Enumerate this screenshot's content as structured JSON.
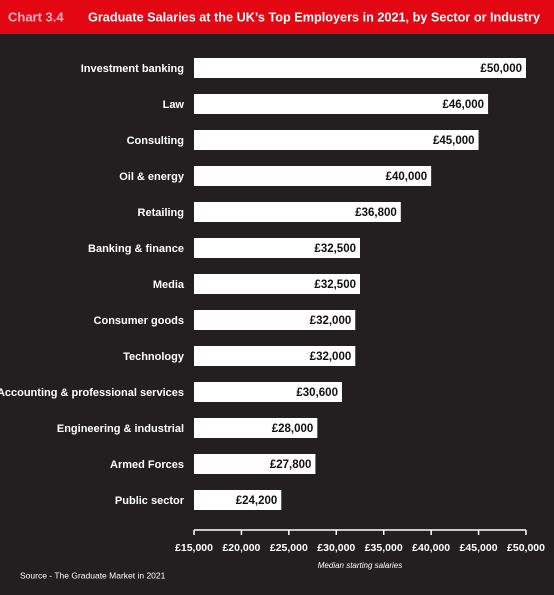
{
  "chart_data": {
    "type": "bar",
    "orientation": "horizontal",
    "chart_label": "Chart 3.4",
    "title": "Graduate Salaries at the UK’s Top Employers in 2021, by Sector or Industry",
    "categories": [
      "Investment banking",
      "Law",
      "Consulting",
      "Oil & energy",
      "Retailing",
      "Banking & finance",
      "Media",
      "Consumer goods",
      "Technology",
      "Accounting & professional services",
      "Engineering & industrial",
      "Armed Forces",
      "Public sector"
    ],
    "values": [
      50000,
      46000,
      45000,
      40000,
      36800,
      32500,
      32500,
      32000,
      32000,
      30600,
      28000,
      27800,
      24200
    ],
    "value_labels": [
      "£50,000",
      "£46,000",
      "£45,000",
      "£40,000",
      "£36,800",
      "£32,500",
      "£32,500",
      "£32,000",
      "£32,000",
      "£30,600",
      "£28,000",
      "£27,800",
      "£24,200"
    ],
    "color": "#ffffff",
    "xlim": [
      15000,
      50000
    ],
    "xticks": [
      {
        "value": 15000,
        "label": "£15,000"
      },
      {
        "value": 20000,
        "label": "£20,000"
      },
      {
        "value": 25000,
        "label": "£25,000"
      },
      {
        "value": 30000,
        "label": "£30,000"
      },
      {
        "value": 35000,
        "label": "£35,000"
      },
      {
        "value": 40000,
        "label": "£40,000"
      },
      {
        "value": 45000,
        "label": "£45,000"
      },
      {
        "value": 50000,
        "label": "£50,000"
      }
    ],
    "x_label": "Median starting salaries",
    "source": "Source - The Graduate Market in 2021"
  }
}
